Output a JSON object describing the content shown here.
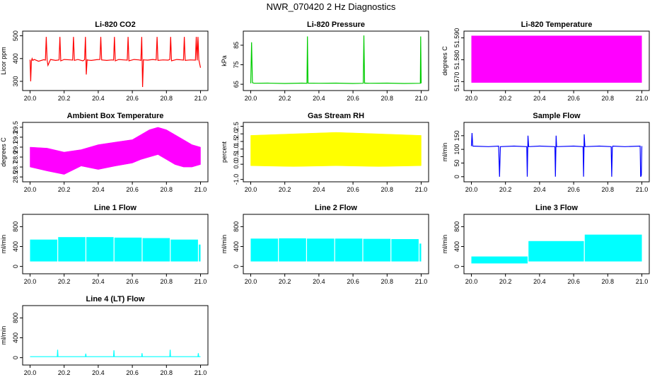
{
  "figure_title": "NWR_070420  2 Hz Diagnostics",
  "chart_data": [
    {
      "id": "co2",
      "type": "line",
      "title": "Li-820 CO2",
      "ylabel": "Licor ppm",
      "color": "#ff0000",
      "xlim": [
        0.0,
        1.0
      ],
      "ylim": [
        270,
        510
      ],
      "xticks": [
        "20.0",
        "20.2",
        "20.4",
        "20.6",
        "20.8",
        "21.0"
      ],
      "yticks": [
        300,
        400,
        500
      ],
      "series": [
        {
          "x": [
            0.0,
            0.004,
            0.008,
            0.012,
            0.016,
            0.025,
            0.05,
            0.08,
            0.09,
            0.095,
            0.1,
            0.105,
            0.12,
            0.15,
            0.17,
            0.175,
            0.18,
            0.2,
            0.24,
            0.25,
            0.255,
            0.26,
            0.28,
            0.31,
            0.32,
            0.325,
            0.33,
            0.335,
            0.34,
            0.36,
            0.39,
            0.41,
            0.415,
            0.42,
            0.45,
            0.48,
            0.49,
            0.495,
            0.5,
            0.52,
            0.55,
            0.57,
            0.575,
            0.58,
            0.61,
            0.64,
            0.65,
            0.655,
            0.66,
            0.665,
            0.67,
            0.69,
            0.72,
            0.74,
            0.745,
            0.75,
            0.78,
            0.81,
            0.82,
            0.825,
            0.83,
            0.86,
            0.89,
            0.9,
            0.905,
            0.91,
            0.94,
            0.97,
            0.975,
            0.98,
            0.985,
            0.99,
            1.0
          ],
          "y": [
            395,
            300,
            390,
            400,
            392,
            396,
            388,
            395,
            393,
            495,
            394,
            370,
            396,
            392,
            394,
            495,
            390,
            396,
            394,
            393,
            495,
            392,
            396,
            390,
            395,
            495,
            330,
            395,
            393,
            392,
            395,
            396,
            495,
            394,
            392,
            394,
            393,
            495,
            390,
            396,
            394,
            393,
            495,
            390,
            396,
            394,
            392,
            495,
            275,
            395,
            394,
            393,
            396,
            394,
            495,
            392,
            394,
            393,
            396,
            495,
            390,
            396,
            394,
            393,
            495,
            392,
            394,
            393,
            495,
            392,
            495,
            395,
            360
          ]
        }
      ]
    },
    {
      "id": "pressure",
      "type": "line",
      "title": "Li-820 Pressure",
      "ylabel": "kPa",
      "color": "#00cc00",
      "xlim": [
        0.0,
        1.0
      ],
      "ylim": [
        63,
        91
      ],
      "xticks": [
        "20.0",
        "20.2",
        "20.4",
        "20.6",
        "20.8",
        "21.0"
      ],
      "yticks": [
        65,
        75,
        85
      ],
      "series": [
        {
          "x": [
            0.0,
            0.005,
            0.01,
            0.02,
            0.1,
            0.2,
            0.3,
            0.33,
            0.333,
            0.336,
            0.4,
            0.5,
            0.6,
            0.66,
            0.664,
            0.668,
            0.672,
            0.7,
            0.8,
            0.9,
            0.995,
            0.997,
            1.0
          ],
          "y": [
            65.5,
            86.5,
            65.8,
            65.5,
            65.6,
            65.4,
            65.6,
            65.5,
            89.5,
            65.6,
            65.5,
            65.6,
            65.4,
            65.5,
            90.0,
            65.5,
            65.6,
            65.5,
            65.6,
            65.4,
            65.5,
            89.5,
            65.5
          ]
        }
      ]
    },
    {
      "id": "licor_temp",
      "type": "area",
      "title": "Li-820 Temperature",
      "ylabel": "degrees C",
      "color": "#ff00ff",
      "xlim": [
        0.0,
        1.0
      ],
      "ylim": [
        51.567,
        51.592
      ],
      "xticks": [
        "20.0",
        "20.2",
        "20.4",
        "20.6",
        "20.8",
        "21.0"
      ],
      "yticks": [
        51.57,
        51.58,
        51.59
      ],
      "ytick_labels": [
        "51.570",
        "51.580",
        "51.590"
      ],
      "band": {
        "x_start": 0.0,
        "x_end": 1.0,
        "y_low": 51.5695,
        "y_high": 51.591
      }
    },
    {
      "id": "ambient_temp",
      "type": "area",
      "title": "Ambient Box Temperature",
      "ylabel": "degrees C",
      "color": "#ff00ff",
      "xlim": [
        0.0,
        1.0
      ],
      "ylim": [
        28.45,
        29.55
      ],
      "xticks": [
        "20.0",
        "20.2",
        "20.4",
        "20.6",
        "20.8",
        "21.0"
      ],
      "yticks": [
        28.5,
        28.7,
        28.9,
        29.1,
        29.3,
        29.5
      ],
      "ytick_labels": [
        "28.5",
        "28.7",
        "28.9",
        "29.1",
        "29.3",
        "29.5"
      ],
      "band_x": [
        0.0,
        0.1,
        0.2,
        0.3,
        0.4,
        0.5,
        0.6,
        0.65,
        0.7,
        0.75,
        0.8,
        0.85,
        0.9,
        0.95,
        1.0
      ],
      "band_low": [
        28.7,
        28.62,
        28.55,
        28.72,
        28.65,
        28.72,
        28.78,
        28.85,
        28.9,
        28.95,
        28.85,
        28.75,
        28.7,
        28.7,
        28.75
      ],
      "band_high": [
        29.1,
        29.08,
        29.0,
        29.05,
        29.15,
        29.2,
        29.25,
        29.35,
        29.45,
        29.5,
        29.45,
        29.35,
        29.25,
        29.15,
        29.1
      ]
    },
    {
      "id": "rh",
      "type": "area",
      "title": "Gas Stream RH",
      "ylabel": "percent",
      "color": "#ffff00",
      "xlim": [
        0.0,
        1.0
      ],
      "ylim": [
        -1.0,
        2.6
      ],
      "xticks": [
        "20.0",
        "20.2",
        "20.4",
        "20.6",
        "20.8",
        "21.0"
      ],
      "yticks": [
        -1.0,
        0.0,
        0.5,
        1.0,
        1.5,
        2.0,
        2.5
      ],
      "ytick_labels": [
        "-1.0",
        "0.0",
        "0.5",
        "1.0",
        "1.5",
        "2.0",
        "2.5"
      ],
      "band_x": [
        0.0,
        0.25,
        0.5,
        0.75,
        1.0
      ],
      "band_low": [
        -0.1,
        -0.15,
        -0.1,
        -0.15,
        -0.1
      ],
      "band_high": [
        1.9,
        2.0,
        2.1,
        2.0,
        1.9
      ]
    },
    {
      "id": "sample_flow",
      "type": "line",
      "title": "Sample Flow",
      "ylabel": "ml/min",
      "color": "#0000ff",
      "xlim": [
        0.0,
        1.0
      ],
      "ylim": [
        -10,
        190
      ],
      "xticks": [
        "20.0",
        "20.2",
        "20.4",
        "20.6",
        "20.8",
        "21.0"
      ],
      "yticks": [
        0,
        50,
        100,
        150
      ],
      "series": [
        {
          "x": [
            0.0,
            0.004,
            0.008,
            0.1,
            0.16,
            0.165,
            0.17,
            0.25,
            0.325,
            0.328,
            0.332,
            0.336,
            0.4,
            0.49,
            0.493,
            0.497,
            0.5,
            0.6,
            0.655,
            0.658,
            0.662,
            0.666,
            0.75,
            0.82,
            0.823,
            0.827,
            0.83,
            0.9,
            0.99,
            0.993,
            0.997,
            1.0
          ],
          "y": [
            112,
            160,
            112,
            110,
            112,
            0,
            110,
            112,
            110,
            0,
            150,
            110,
            112,
            110,
            0,
            150,
            110,
            112,
            110,
            0,
            155,
            110,
            112,
            110,
            0,
            108,
            112,
            110,
            112,
            0,
            5,
            112
          ]
        }
      ]
    },
    {
      "id": "line1",
      "type": "area",
      "title": "Line 1 Flow",
      "ylabel": "ml/min",
      "color": "#00ffff",
      "xlim": [
        0.0,
        1.0
      ],
      "ylim": [
        -100,
        1000
      ],
      "xticks": [
        "20.0",
        "20.2",
        "20.4",
        "20.6",
        "20.8",
        "21.0"
      ],
      "yticks": [
        0,
        400,
        800
      ],
      "blocks": [
        {
          "x0": 0.0,
          "x1": 0.16,
          "low": 100,
          "high": 540
        },
        {
          "x0": 0.165,
          "x1": 0.325,
          "low": 100,
          "high": 590
        },
        {
          "x0": 0.33,
          "x1": 0.49,
          "low": 100,
          "high": 590
        },
        {
          "x0": 0.495,
          "x1": 0.655,
          "low": 100,
          "high": 580
        },
        {
          "x0": 0.66,
          "x1": 0.82,
          "low": 100,
          "high": 570
        },
        {
          "x0": 0.825,
          "x1": 0.985,
          "low": 100,
          "high": 540
        },
        {
          "x0": 0.99,
          "x1": 1.0,
          "low": 100,
          "high": 440
        }
      ]
    },
    {
      "id": "line2",
      "type": "area",
      "title": "Line 2 Flow",
      "ylabel": "ml/min",
      "color": "#00ffff",
      "xlim": [
        0.0,
        1.0
      ],
      "ylim": [
        -100,
        1000
      ],
      "xticks": [
        "20.0",
        "20.2",
        "20.4",
        "20.6",
        "20.8",
        "21.0"
      ],
      "yticks": [
        0,
        400,
        800
      ],
      "blocks": [
        {
          "x0": 0.0,
          "x1": 0.16,
          "low": 100,
          "high": 560
        },
        {
          "x0": 0.165,
          "x1": 0.325,
          "low": 100,
          "high": 565
        },
        {
          "x0": 0.33,
          "x1": 0.49,
          "low": 100,
          "high": 560
        },
        {
          "x0": 0.495,
          "x1": 0.655,
          "low": 100,
          "high": 560
        },
        {
          "x0": 0.66,
          "x1": 0.82,
          "low": 100,
          "high": 555
        },
        {
          "x0": 0.825,
          "x1": 0.985,
          "low": 100,
          "high": 550
        },
        {
          "x0": 0.99,
          "x1": 1.0,
          "low": 100,
          "high": 460
        }
      ]
    },
    {
      "id": "line3",
      "type": "area",
      "title": "Line 3 Flow",
      "ylabel": "ml/min",
      "color": "#00ffff",
      "xlim": [
        0.0,
        1.0
      ],
      "ylim": [
        -100,
        1000
      ],
      "xticks": [
        "20.0",
        "20.2",
        "20.4",
        "20.6",
        "20.8",
        "21.0"
      ],
      "yticks": [
        0,
        400,
        800
      ],
      "blocks": [
        {
          "x0": 0.0,
          "x1": 0.33,
          "low": 60,
          "high": 200
        },
        {
          "x0": 0.335,
          "x1": 0.66,
          "low": 100,
          "high": 510
        },
        {
          "x0": 0.665,
          "x1": 1.0,
          "low": 100,
          "high": 640
        }
      ]
    },
    {
      "id": "line4",
      "type": "line",
      "title": "Line 4 (LT) Flow",
      "ylabel": "ml/min",
      "color": "#00ffff",
      "xlim": [
        0.0,
        1.0
      ],
      "ylim": [
        -100,
        1000
      ],
      "xticks": [
        "20.0",
        "20.2",
        "20.4",
        "20.6",
        "20.8",
        "21.0"
      ],
      "yticks": [
        0,
        400,
        800
      ],
      "series": [
        {
          "x": [
            0.0,
            0.16,
            0.162,
            0.164,
            0.166,
            0.325,
            0.327,
            0.329,
            0.49,
            0.492,
            0.494,
            0.496,
            0.655,
            0.657,
            0.659,
            0.82,
            0.822,
            0.824,
            0.826,
            0.985,
            0.987,
            0.989,
            1.0
          ],
          "y": [
            20,
            20,
            160,
            20,
            20,
            20,
            80,
            20,
            20,
            150,
            20,
            20,
            20,
            90,
            20,
            20,
            160,
            20,
            20,
            20,
            90,
            20,
            20
          ]
        }
      ]
    }
  ]
}
